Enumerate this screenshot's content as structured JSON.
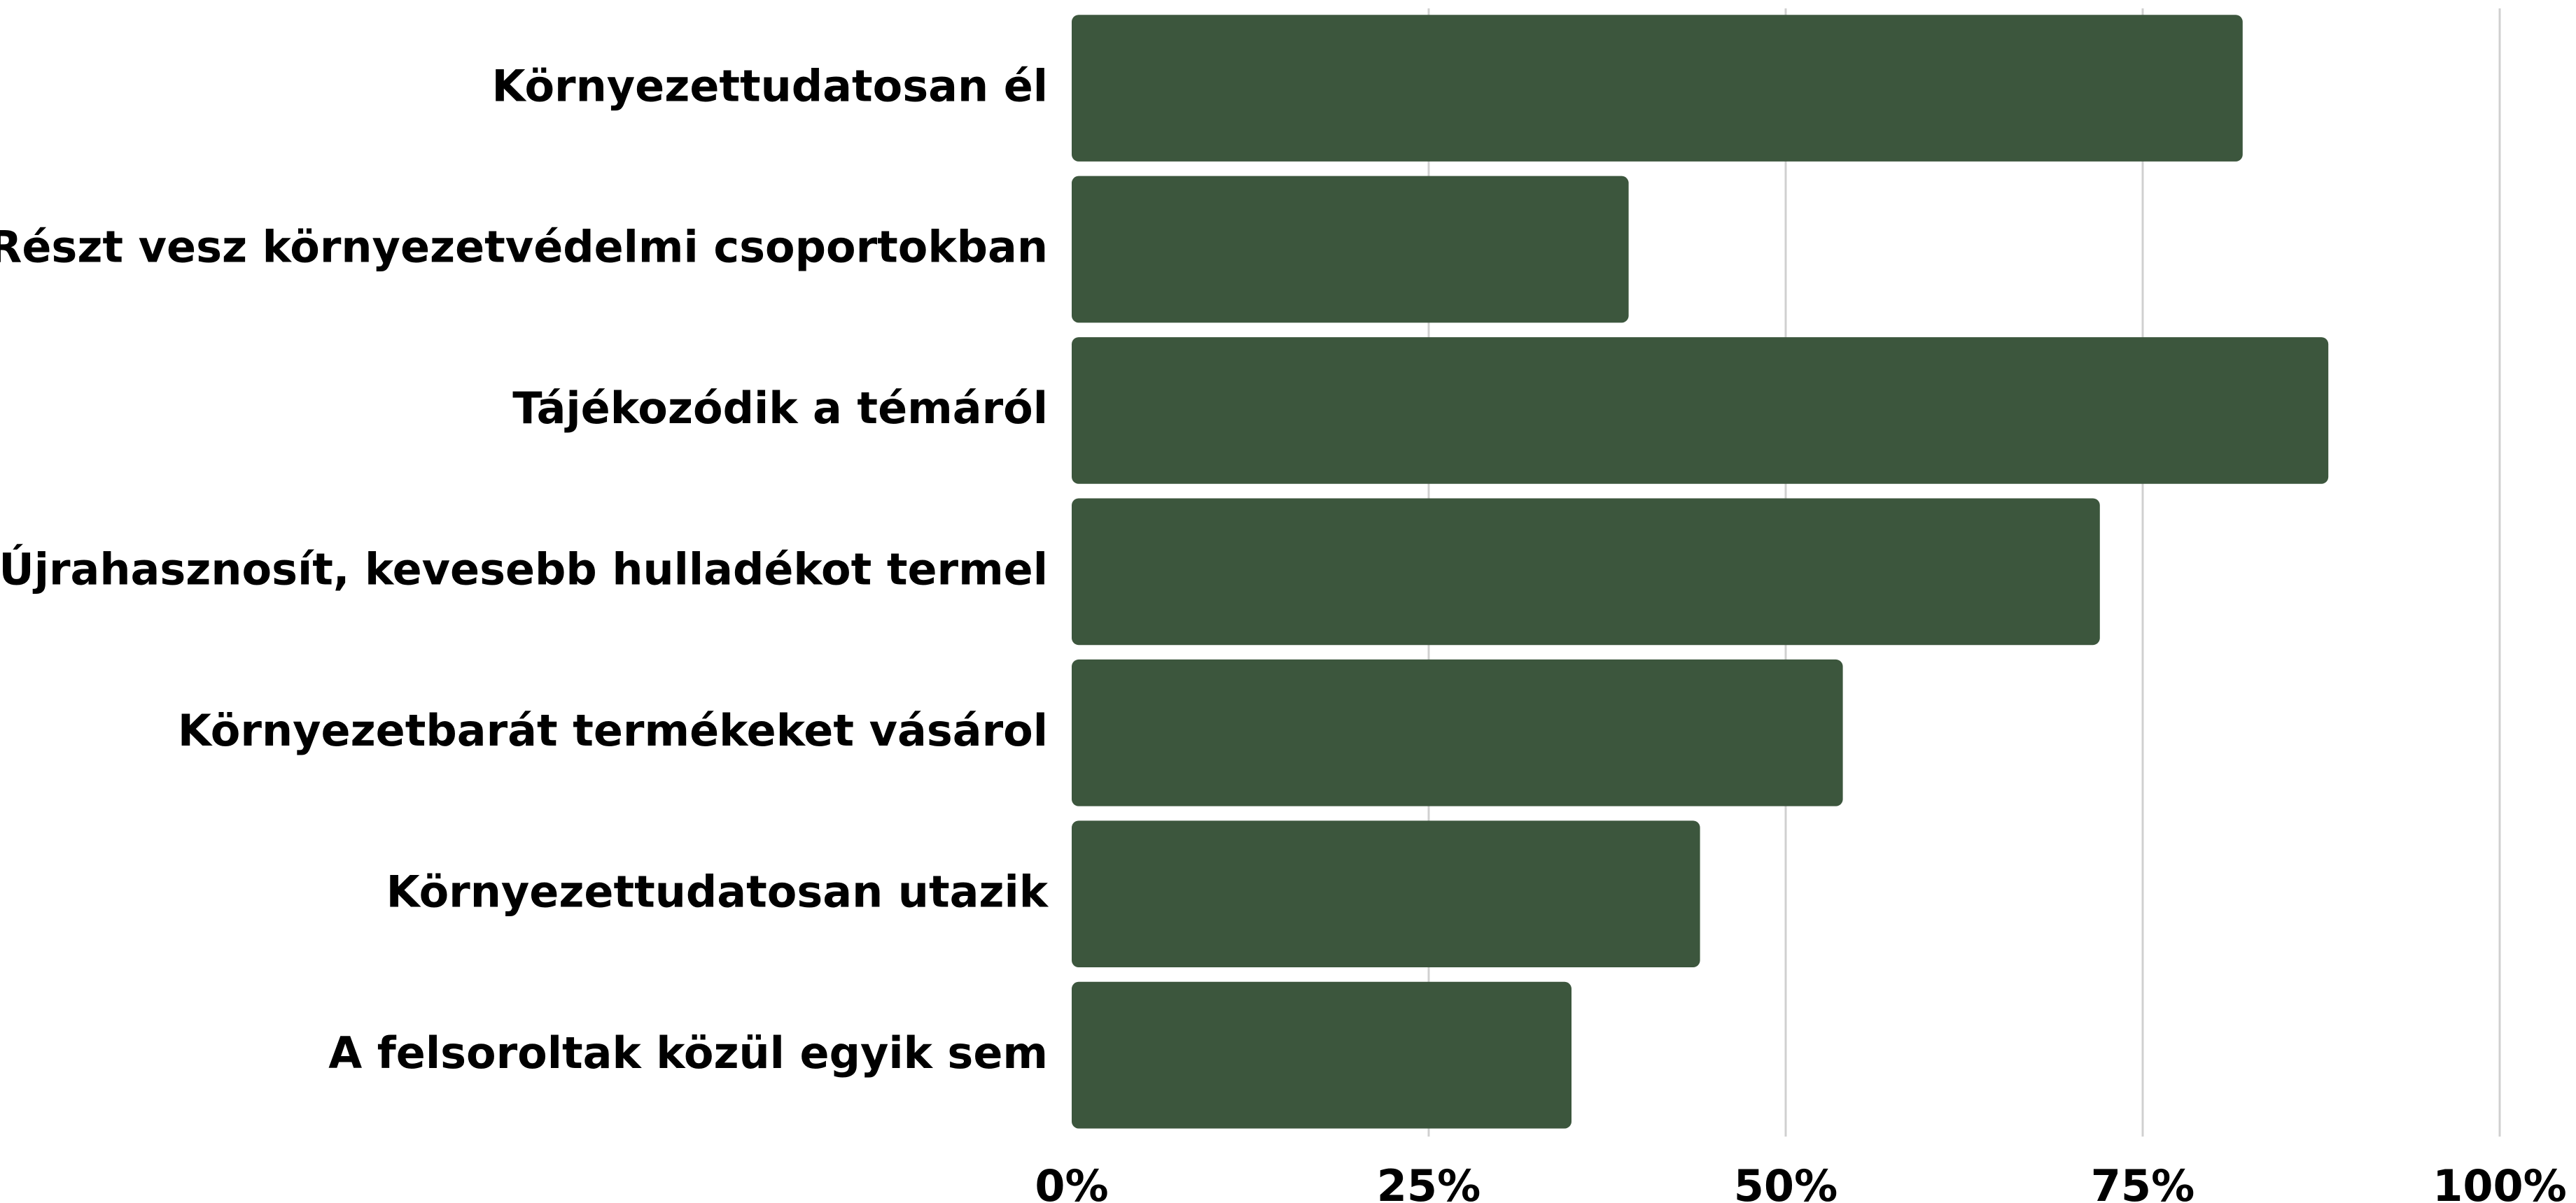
{
  "chart_data": {
    "type": "barh",
    "categories": [
      "Környezettudatosan él",
      "Részt vesz környezetvédelmi csoportokban",
      "Tájékozódik a témáról",
      "Újrahasznosít, kevesebb hulladékot termel",
      "Környezetbarát termékeket vásárol",
      "Környezettudatosan utazik",
      "A felsoroltak közül egyik sem"
    ],
    "values": [
      82,
      39,
      88,
      72,
      54,
      44,
      35
    ],
    "color": "#3c563d",
    "xlim": [
      0,
      100
    ],
    "xticks": [
      {
        "value": 0,
        "label": "0%"
      },
      {
        "value": 25,
        "label": "25%"
      },
      {
        "value": 50,
        "label": "50%"
      },
      {
        "value": 75,
        "label": "75%"
      },
      {
        "value": 100,
        "label": "100%"
      }
    ],
    "grid": true
  }
}
